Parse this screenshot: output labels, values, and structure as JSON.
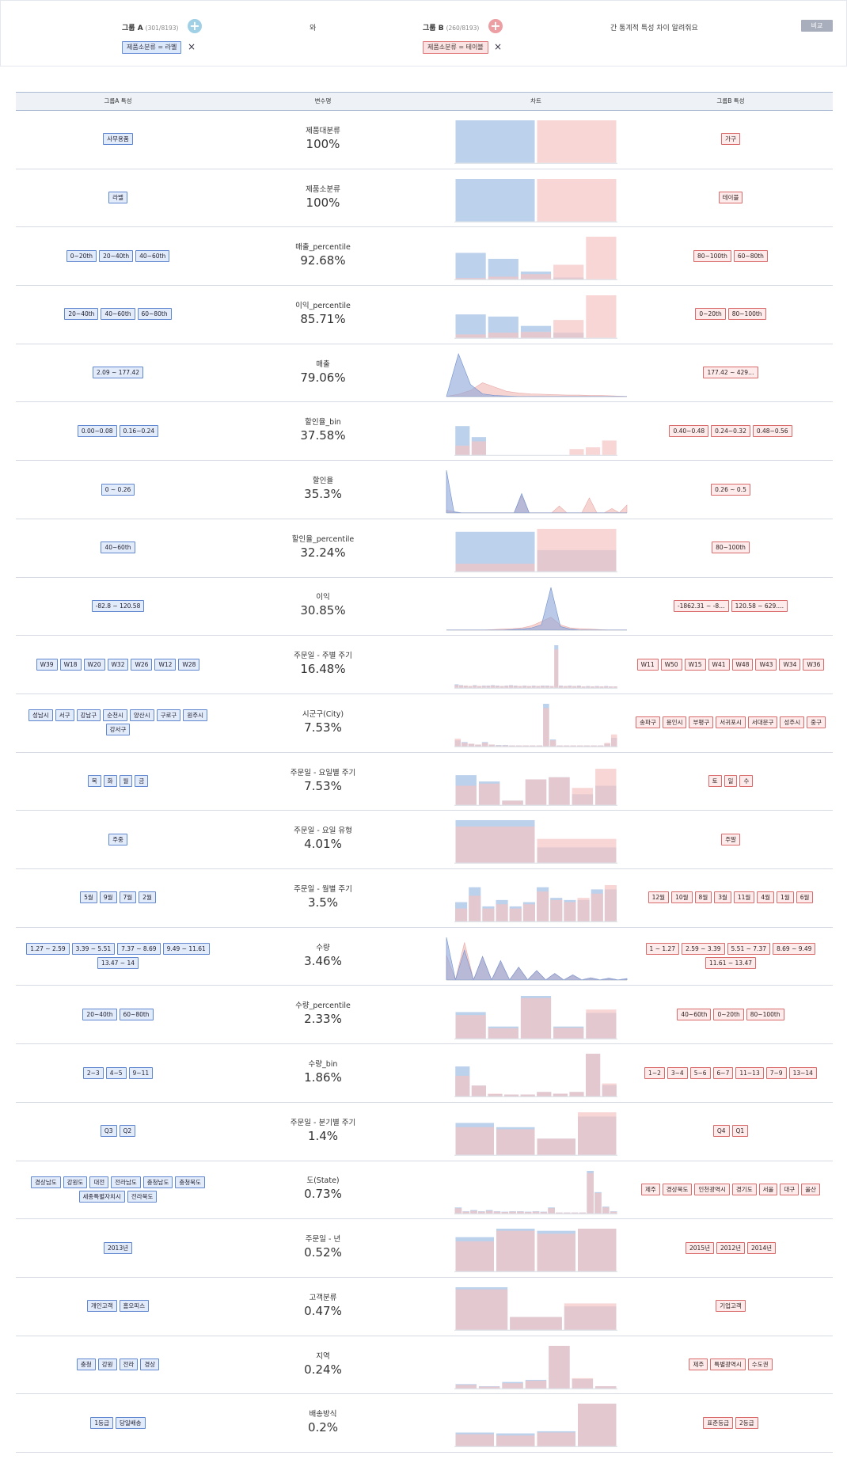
{
  "header": {
    "group_a_label": "그룹 A",
    "group_a_count": "(301/8193)",
    "connector": "와",
    "group_b_label": "그룹 B",
    "group_b_count": "(260/8193)",
    "question": "간 통계적 특성 차이 알려줘요",
    "compare_button": "비교",
    "filter_a": "제품소분류 = 라벨",
    "filter_b": "제품소분류 = 테이블",
    "remove_icon": "×"
  },
  "table": {
    "col_a": "그룹A 특성",
    "col_var": "변수명",
    "col_chart": "차트",
    "col_b": "그룹B 특성"
  },
  "colors": {
    "group_a": "#a9c4e6",
    "group_b": "#f3c5c3",
    "overlap": "#a58ab0"
  },
  "rows": [
    {
      "name": "제품대분류",
      "pct": "100%",
      "a_tags": [
        "사무용품"
      ],
      "b_tags": [
        "가구"
      ]
    },
    {
      "name": "제품소분류",
      "pct": "100%",
      "a_tags": [
        "라벨"
      ],
      "b_tags": [
        "테이블"
      ]
    },
    {
      "name": "매출_percentile",
      "pct": "92.68%",
      "a_tags": [
        "0~20th",
        "20~40th",
        "40~60th"
      ],
      "b_tags": [
        "80~100th",
        "60~80th"
      ]
    },
    {
      "name": "이익_percentile",
      "pct": "85.71%",
      "a_tags": [
        "20~40th",
        "40~60th",
        "60~80th"
      ],
      "b_tags": [
        "0~20th",
        "80~100th"
      ]
    },
    {
      "name": "매출",
      "pct": "79.06%",
      "a_tags": [
        "2.09 ~ 177.42"
      ],
      "b_tags": [
        "177.42 ~ 429…"
      ]
    },
    {
      "name": "할인율_bin",
      "pct": "37.58%",
      "a_tags": [
        "0.00~0.08",
        "0.16~0.24"
      ],
      "b_tags": [
        "0.40~0.48",
        "0.24~0.32",
        "0.48~0.56"
      ]
    },
    {
      "name": "할인율",
      "pct": "35.3%",
      "a_tags": [
        "0 ~ 0.26"
      ],
      "b_tags": [
        "0.26 ~ 0.5"
      ]
    },
    {
      "name": "할인율_percentile",
      "pct": "32.24%",
      "a_tags": [
        "40~60th"
      ],
      "b_tags": [
        "80~100th"
      ]
    },
    {
      "name": "이익",
      "pct": "30.85%",
      "a_tags": [
        "-82.8 ~ 120.58"
      ],
      "b_tags": [
        "-1862.31 ~ -8…",
        "120.58 ~ 629.…"
      ]
    },
    {
      "name": "주문일 - 주별 주기",
      "pct": "16.48%",
      "a_tags": [
        "W39",
        "W18",
        "W20",
        "W32",
        "W26",
        "W12",
        "W28"
      ],
      "b_tags": [
        "W11",
        "W50",
        "W15",
        "W41",
        "W48",
        "W43",
        "W34",
        "W36"
      ]
    },
    {
      "name": "시군구(City)",
      "pct": "7.53%",
      "a_tags": [
        "성남시",
        "서구",
        "강남구",
        "순천시",
        "양산시",
        "구로구",
        "원주시",
        "강서구"
      ],
      "b_tags": [
        "송파구",
        "용인시",
        "부평구",
        "서귀포시",
        "서대문구",
        "성주시",
        "중구"
      ]
    },
    {
      "name": "주문일 - 요일별 주기",
      "pct": "7.53%",
      "a_tags": [
        "목",
        "화",
        "월",
        "금"
      ],
      "b_tags": [
        "토",
        "일",
        "수"
      ]
    },
    {
      "name": "주문일 - 요일 유형",
      "pct": "4.01%",
      "a_tags": [
        "주중"
      ],
      "b_tags": [
        "주말"
      ]
    },
    {
      "name": "주문일 - 월별 주기",
      "pct": "3.5%",
      "a_tags": [
        "5월",
        "9월",
        "7월",
        "2월"
      ],
      "b_tags": [
        "12월",
        "10월",
        "8월",
        "3월",
        "11월",
        "4월",
        "1월",
        "6월"
      ]
    },
    {
      "name": "수량",
      "pct": "3.46%",
      "a_tags": [
        "1.27 ~ 2.59",
        "3.39 ~ 5.51",
        "7.37 ~ 8.69",
        "9.49 ~ 11.61",
        "13.47 ~ 14"
      ],
      "b_tags": [
        "1 ~ 1.27",
        "2.59 ~ 3.39",
        "5.51 ~ 7.37",
        "8.69 ~ 9.49",
        "11.61 ~ 13.47"
      ]
    },
    {
      "name": "수량_percentile",
      "pct": "2.33%",
      "a_tags": [
        "20~40th",
        "60~80th"
      ],
      "b_tags": [
        "40~60th",
        "0~20th",
        "80~100th"
      ]
    },
    {
      "name": "수량_bin",
      "pct": "1.86%",
      "a_tags": [
        "2~3",
        "4~5",
        "9~11"
      ],
      "b_tags": [
        "1~2",
        "3~4",
        "5~6",
        "6~7",
        "11~13",
        "7~9",
        "13~14"
      ]
    },
    {
      "name": "주문일 - 분기별 주기",
      "pct": "1.4%",
      "a_tags": [
        "Q3",
        "Q2"
      ],
      "b_tags": [
        "Q4",
        "Q1"
      ]
    },
    {
      "name": "도(State)",
      "pct": "0.73%",
      "a_tags": [
        "경상남도",
        "강원도",
        "대전",
        "전라남도",
        "충청남도",
        "충청북도",
        "세종특별자치시",
        "전라북도"
      ],
      "b_tags": [
        "제주",
        "경상북도",
        "인천광역시",
        "경기도",
        "서울",
        "대구",
        "울산"
      ]
    },
    {
      "name": "주문일 - 년",
      "pct": "0.52%",
      "a_tags": [
        "2013년"
      ],
      "b_tags": [
        "2015년",
        "2012년",
        "2014년"
      ]
    },
    {
      "name": "고객분류",
      "pct": "0.47%",
      "a_tags": [
        "개인고객",
        "홈오피스"
      ],
      "b_tags": [
        "기업고객"
      ]
    },
    {
      "name": "지역",
      "pct": "0.24%",
      "a_tags": [
        "충청",
        "강원",
        "전라",
        "경상"
      ],
      "b_tags": [
        "제주",
        "특별광역시",
        "수도권"
      ]
    },
    {
      "name": "배송방식",
      "pct": "0.2%",
      "a_tags": [
        "1등급",
        "당일배송"
      ],
      "b_tags": [
        "표준등급",
        "2등급"
      ]
    }
  ],
  "chart_data": [
    {
      "type": "bar",
      "row": "제품대분류",
      "series": [
        {
          "values": [
            1,
            0
          ]
        },
        {
          "values": [
            0,
            1
          ]
        }
      ]
    },
    {
      "type": "bar",
      "row": "제품소분류",
      "series": [
        {
          "values": [
            1,
            0
          ]
        },
        {
          "values": [
            0,
            1
          ]
        }
      ]
    },
    {
      "type": "bar",
      "row": "매출_percentile",
      "series": [
        {
          "values": [
            0.62,
            0.48,
            0.18,
            0.04,
            0.0
          ]
        },
        {
          "values": [
            0.03,
            0.06,
            0.12,
            0.34,
            1.0
          ]
        }
      ]
    },
    {
      "type": "bar",
      "row": "이익_percentile",
      "series": [
        {
          "values": [
            0.55,
            0.5,
            0.28,
            0.12,
            0.0
          ]
        },
        {
          "values": [
            0.08,
            0.12,
            0.14,
            0.42,
            1.0
          ]
        }
      ]
    },
    {
      "type": "area",
      "row": "매출",
      "series": [
        {
          "values": [
            0,
            1.0,
            0.28,
            0.06,
            0.02,
            0.01,
            0,
            0,
            0,
            0,
            0,
            0,
            0,
            0,
            0,
            0
          ]
        },
        {
          "values": [
            0,
            0.05,
            0.14,
            0.32,
            0.22,
            0.12,
            0.08,
            0.06,
            0.05,
            0.04,
            0.03,
            0.03,
            0.02,
            0.02,
            0.01,
            0
          ]
        }
      ]
    },
    {
      "type": "bar",
      "row": "할인율_bin",
      "series": [
        {
          "values": [
            0.68,
            0.42,
            0,
            0,
            0,
            0,
            0,
            0,
            0,
            0
          ]
        },
        {
          "values": [
            0.22,
            0.32,
            0,
            0,
            0,
            0,
            0,
            0.14,
            0.18,
            0.34
          ]
        }
      ]
    },
    {
      "type": "area",
      "row": "할인율",
      "series": [
        {
          "values": [
            1.0,
            0.02,
            0,
            0,
            0,
            0,
            0,
            0,
            0,
            0,
            0.45,
            0,
            0,
            0,
            0,
            0,
            0,
            0,
            0,
            0,
            0,
            0,
            0,
            0,
            0
          ]
        },
        {
          "values": [
            0.06,
            0.02,
            0,
            0,
            0,
            0,
            0,
            0,
            0,
            0,
            0.4,
            0,
            0,
            0,
            0,
            0.16,
            0,
            0,
            0,
            0.35,
            0,
            0,
            0.1,
            0,
            0.18
          ]
        }
      ]
    },
    {
      "type": "bar",
      "row": "할인율_percentile",
      "series": [
        {
          "values": [
            0.93,
            0.5
          ]
        },
        {
          "values": [
            0.18,
            1.0
          ]
        }
      ]
    },
    {
      "type": "area",
      "row": "이익",
      "series": [
        {
          "values": [
            0,
            0,
            0,
            0,
            0,
            0,
            0,
            0.01,
            0.02,
            0.05,
            0.12,
            1.0,
            0.08,
            0.02,
            0,
            0,
            0,
            0,
            0,
            0
          ]
        },
        {
          "values": [
            0,
            0,
            0,
            0,
            0,
            0.01,
            0.02,
            0.03,
            0.05,
            0.1,
            0.2,
            0.3,
            0.12,
            0.05,
            0.03,
            0.02,
            0.01,
            0,
            0,
            0
          ]
        }
      ]
    },
    {
      "type": "bar",
      "row": "주문일 - 주별 주기",
      "series": [
        {
          "values": [
            0.08,
            0.06,
            0.05,
            0.04,
            0.06,
            0.04,
            0.05,
            0.05,
            0.06,
            0.05,
            0.04,
            0.05,
            0.06,
            0.05,
            0.04,
            0.05,
            0.04,
            0.05,
            0.04,
            0.05,
            0.05,
            0.04,
            1.0,
            0.05,
            0.04,
            0.05,
            0.04,
            0.05,
            0.03,
            0.04,
            0.03,
            0.04,
            0.03,
            0.04,
            0.03,
            0.03
          ]
        },
        {
          "values": [
            0.06,
            0.05,
            0.05,
            0.04,
            0.05,
            0.04,
            0.04,
            0.04,
            0.05,
            0.04,
            0.04,
            0.04,
            0.05,
            0.04,
            0.04,
            0.04,
            0.04,
            0.04,
            0.04,
            0.04,
            0.04,
            0.04,
            0.9,
            0.04,
            0.04,
            0.04,
            0.04,
            0.04,
            0.03,
            0.03,
            0.03,
            0.03,
            0.03,
            0.03,
            0.03,
            0.03
          ]
        }
      ]
    },
    {
      "type": "bar",
      "row": "시군구(City)",
      "series": [
        {
          "values": [
            0.14,
            0.1,
            0.06,
            0.04,
            0.1,
            0.04,
            0.03,
            0.03,
            0.02,
            0.02,
            0.02,
            0.02,
            0.02,
            1.0,
            0.16,
            0.02,
            0.02,
            0.02,
            0.02,
            0.02,
            0.02,
            0.02,
            0.06,
            0.2
          ]
        },
        {
          "values": [
            0.18,
            0.08,
            0.06,
            0.04,
            0.08,
            0.04,
            0.02,
            0.02,
            0.02,
            0.02,
            0.02,
            0.02,
            0.02,
            0.9,
            0.14,
            0.02,
            0.02,
            0.02,
            0.02,
            0.02,
            0.02,
            0.02,
            0.08,
            0.28
          ]
        }
      ]
    },
    {
      "type": "bar",
      "row": "주문일 - 요일별 주기",
      "series": [
        {
          "values": [
            0.7,
            0.55,
            0.1,
            0.6,
            0.65,
            0.25,
            0.45
          ]
        },
        {
          "values": [
            0.45,
            0.5,
            0.1,
            0.6,
            0.65,
            0.4,
            0.85
          ]
        }
      ]
    },
    {
      "type": "bar",
      "row": "주문일 - 요일 유형",
      "series": [
        {
          "values": [
            1.0,
            0.36
          ]
        },
        {
          "values": [
            0.85,
            0.56
          ]
        }
      ]
    },
    {
      "type": "bar",
      "row": "주문일 - 월별 주기",
      "series": [
        {
          "values": [
            0.45,
            0.8,
            0.35,
            0.5,
            0.35,
            0.45,
            0.8,
            0.55,
            0.5,
            0.5,
            0.75,
            0.75
          ]
        },
        {
          "values": [
            0.3,
            0.6,
            0.3,
            0.4,
            0.3,
            0.4,
            0.7,
            0.5,
            0.45,
            0.55,
            0.65,
            0.85
          ]
        }
      ]
    },
    {
      "type": "area",
      "row": "수량",
      "series": [
        {
          "values": [
            1.0,
            0.0,
            0.7,
            0.0,
            0.55,
            0.0,
            0.45,
            0.0,
            0.3,
            0.0,
            0.22,
            0.0,
            0.15,
            0.0,
            0.12,
            0.0,
            0.05,
            0.0,
            0.04,
            0.0,
            0.03
          ]
        },
        {
          "values": [
            0.58,
            0.0,
            0.88,
            0.0,
            0.55,
            0.0,
            0.4,
            0.0,
            0.3,
            0.0,
            0.22,
            0.0,
            0.15,
            0.0,
            0.1,
            0.0,
            0.05,
            0.0,
            0.03,
            0.0,
            0.02
          ]
        }
      ]
    },
    {
      "type": "bar",
      "row": "수량_percentile",
      "series": [
        {
          "values": [
            0.62,
            0.28,
            1.0,
            0.28,
            0.6
          ]
        },
        {
          "values": [
            0.55,
            0.24,
            0.95,
            0.25,
            0.68
          ]
        }
      ]
    },
    {
      "type": "bar",
      "row": "수량_bin",
      "series": [
        {
          "values": [
            0.7,
            0.25,
            0.05,
            0.04,
            0.04,
            0.1,
            0.06,
            0.1,
            1.0,
            0.26
          ]
        },
        {
          "values": [
            0.48,
            0.25,
            0.06,
            0.04,
            0.04,
            0.1,
            0.06,
            0.1,
            1.0,
            0.3
          ]
        }
      ]
    },
    {
      "type": "bar",
      "row": "주문일 - 분기별 주기",
      "series": [
        {
          "values": [
            0.75,
            0.65,
            0.38,
            0.9
          ]
        },
        {
          "values": [
            0.65,
            0.6,
            0.38,
            1.0
          ]
        }
      ]
    },
    {
      "type": "bar",
      "row": "도(State)",
      "series": [
        {
          "values": [
            0.14,
            0.05,
            0.08,
            0.05,
            0.08,
            0.05,
            0.04,
            0.05,
            0.05,
            0.04,
            0.05,
            0.04,
            0.14,
            0.02,
            0.02,
            0.02,
            0.02,
            1.0,
            0.5,
            0.16,
            0.05
          ]
        },
        {
          "values": [
            0.12,
            0.04,
            0.06,
            0.04,
            0.06,
            0.04,
            0.03,
            0.04,
            0.04,
            0.03,
            0.04,
            0.03,
            0.12,
            0.02,
            0.02,
            0.02,
            0.02,
            0.95,
            0.48,
            0.14,
            0.04
          ]
        }
      ]
    },
    {
      "type": "bar",
      "row": "주문일 - 년",
      "series": [
        {
          "values": [
            0.8,
            1.0,
            0.95,
            1.0
          ]
        },
        {
          "values": [
            0.7,
            0.95,
            0.88,
            1.0
          ]
        }
      ]
    },
    {
      "type": "bar",
      "row": "고객분류",
      "series": [
        {
          "values": [
            1.0,
            0.3,
            0.55
          ]
        },
        {
          "values": [
            0.95,
            0.3,
            0.62
          ]
        }
      ]
    },
    {
      "type": "bar",
      "row": "지역",
      "series": [
        {
          "values": [
            0.1,
            0.05,
            0.15,
            0.2,
            1.0,
            0.22,
            0.05
          ]
        },
        {
          "values": [
            0.08,
            0.04,
            0.12,
            0.18,
            1.0,
            0.24,
            0.05
          ]
        }
      ]
    },
    {
      "type": "bar",
      "row": "배송방식",
      "series": [
        {
          "values": [
            0.32,
            0.3,
            0.35,
            1.0
          ]
        },
        {
          "values": [
            0.28,
            0.25,
            0.32,
            1.0
          ]
        }
      ]
    }
  ]
}
